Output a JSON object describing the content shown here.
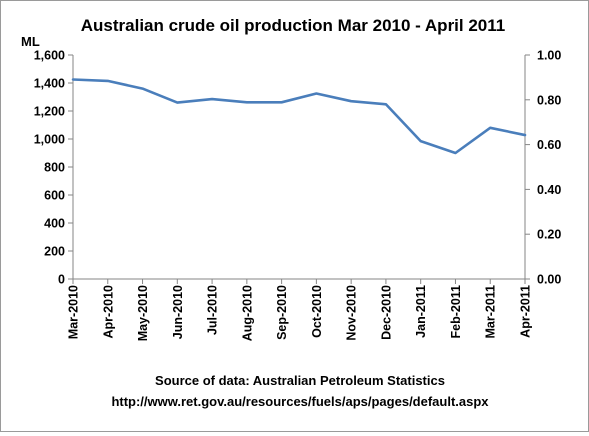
{
  "chart_data": {
    "type": "line",
    "title": "Australian crude oil production Mar 2010 - April 2011",
    "ylabel": "ML",
    "categories": [
      "Mar-2010",
      "Apr-2010",
      "May-2010",
      "Jun-2010",
      "Jul-2010",
      "Aug-2010",
      "Sep-2010",
      "Oct-2010",
      "Nov-2010",
      "Dec-2010",
      "Jan-2011",
      "Feb-2011",
      "Mar-2011",
      "Apr-2011"
    ],
    "series": [
      {
        "values": [
          1425,
          1415,
          1360,
          1260,
          1285,
          1262,
          1262,
          1325,
          1270,
          1248,
          985,
          900,
          1080,
          1028
        ],
        "color": "#4a7ebb"
      }
    ],
    "ylim": [
      0,
      1600
    ],
    "yticks": [
      "0",
      "200",
      "400",
      "600",
      "800",
      "1,000",
      "1,200",
      "1,400",
      "1,600"
    ],
    "y2lim": [
      0,
      1.0
    ],
    "y2ticks": [
      "0.00",
      "0.20",
      "0.40",
      "0.60",
      "0.80",
      "1.00"
    ],
    "grid": false,
    "legend": "none"
  },
  "source": {
    "line1": "Source of data:  Australian Petroleum Statistics",
    "line2": "http://www.ret.gov.au/resources/fuels/aps/pages/default.aspx"
  }
}
